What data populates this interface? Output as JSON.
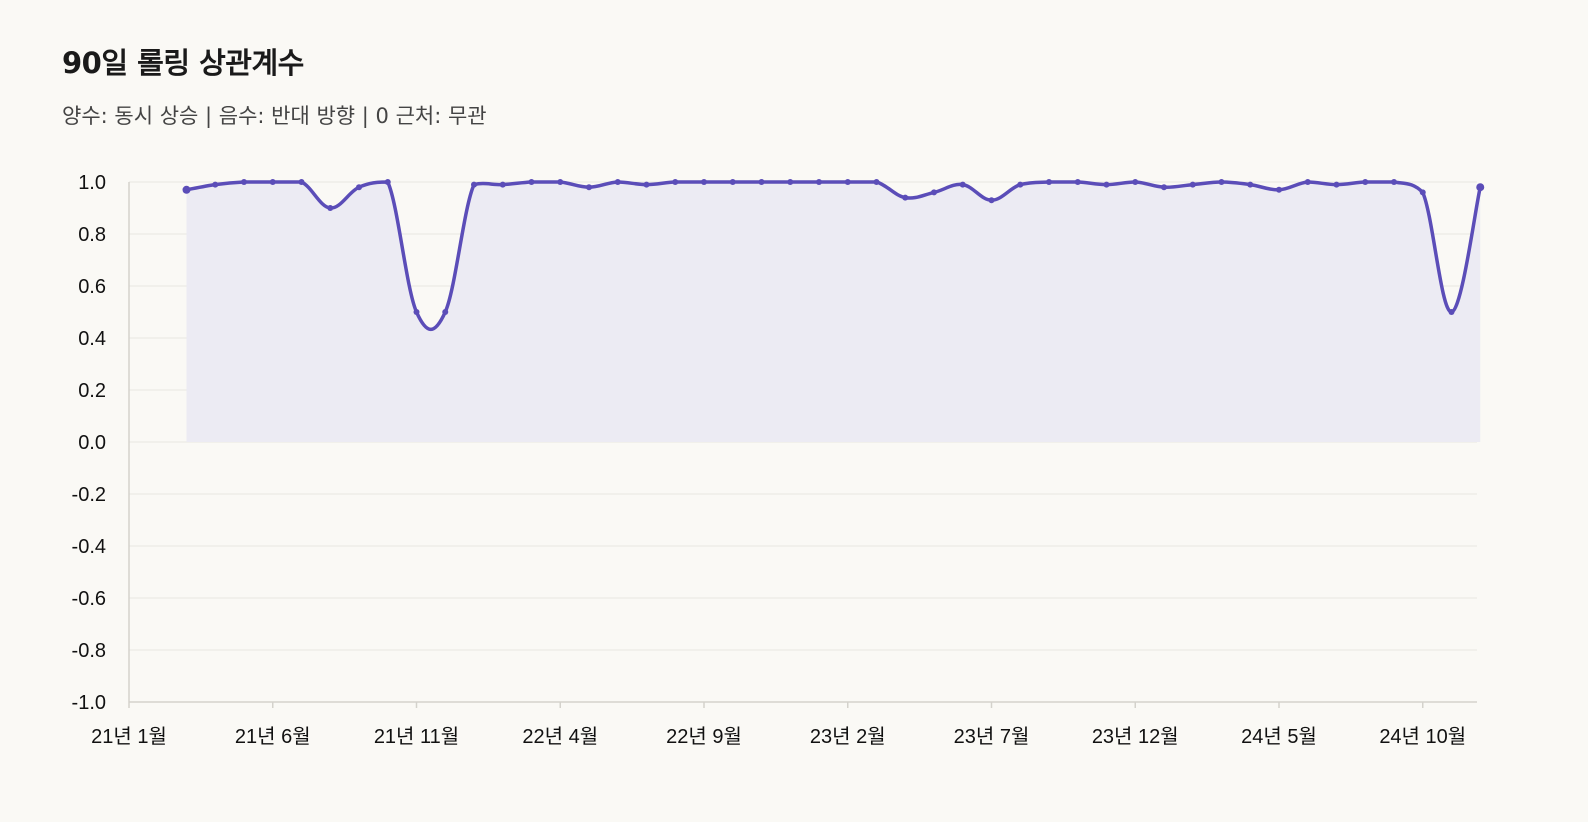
{
  "chart_data": {
    "type": "area",
    "title": "90일 롤링 상관계수",
    "subtitle": "양수: 동시 상승 | 음수: 반대 방향 | 0 근처: 무관",
    "xlabel": "",
    "ylabel": "",
    "ylim": [
      -1.0,
      1.0
    ],
    "y_ticks": [
      "1.0",
      "0.8",
      "0.6",
      "0.4",
      "0.2",
      "0.0",
      "-0.2",
      "-0.4",
      "-0.6",
      "-0.8",
      "-1.0"
    ],
    "x_ticks": [
      "21년 1월",
      "21년 6월",
      "21년 11월",
      "22년 4월",
      "22년 9월",
      "23년 2월",
      "23년 7월",
      "23년 12월",
      "24년 5월",
      "24년 10월"
    ],
    "x_tick_index": [
      0,
      5,
      10,
      15,
      20,
      25,
      30,
      35,
      40,
      45
    ],
    "x": [
      2,
      3,
      4,
      5,
      6,
      7,
      8,
      9,
      10,
      11,
      12,
      13,
      14,
      15,
      16,
      17,
      18,
      19,
      20,
      21,
      22,
      23,
      24,
      25,
      26,
      27,
      28,
      29,
      30,
      31,
      32,
      33,
      34,
      35,
      36,
      37,
      38,
      39,
      40,
      41,
      42,
      43,
      44,
      45,
      46,
      47
    ],
    "series": [
      {
        "values": [
          0.97,
          0.99,
          1.0,
          1.0,
          1.0,
          0.9,
          0.98,
          1.0,
          0.5,
          0.5,
          0.99,
          0.99,
          1.0,
          1.0,
          0.98,
          1.0,
          0.99,
          1.0,
          1.0,
          1.0,
          1.0,
          1.0,
          1.0,
          1.0,
          1.0,
          0.94,
          0.96,
          0.99,
          0.93,
          0.99,
          1.0,
          1.0,
          0.99,
          1.0,
          0.98,
          0.99,
          1.0,
          0.99,
          0.97,
          1.0,
          0.99,
          1.0,
          1.0,
          0.96,
          0.5,
          0.98
        ]
      }
    ],
    "grid": true,
    "colors": {
      "line": "#5b4db8",
      "fill": "#ecebf3",
      "grid": "#e8e6e1",
      "axis": "#d4d2cc"
    }
  }
}
